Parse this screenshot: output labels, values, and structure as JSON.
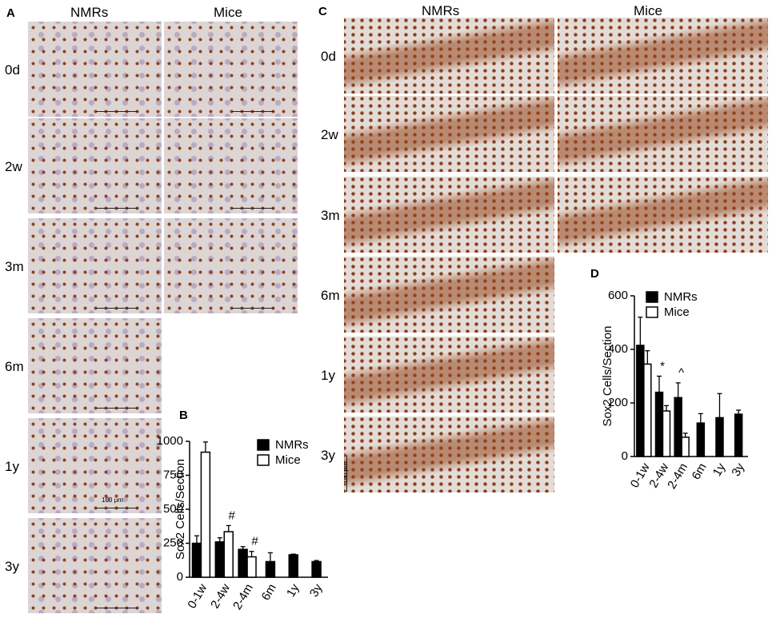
{
  "panels": {
    "A": {
      "label": "A",
      "columns": [
        "NMRs",
        "Mice"
      ],
      "rows": [
        "0d",
        "2w",
        "3m",
        "6m",
        "1y",
        "3y"
      ],
      "scale_label": "100 μm"
    },
    "C": {
      "label": "C",
      "columns": [
        "NMRs",
        "Mice"
      ],
      "rows": [
        "0d",
        "2w",
        "3m",
        "6m",
        "1y",
        "3y"
      ],
      "scale_label": "100 μm"
    }
  },
  "chart_data": [
    {
      "type": "bar",
      "panel_label": "B",
      "ylabel": "Sox2 Cells/Section",
      "categories": [
        "0-1w",
        "2-4w",
        "2-4m",
        "6m",
        "1y",
        "3y"
      ],
      "series": [
        {
          "name": "NMRs",
          "color": "#000000",
          "values": [
            250,
            260,
            205,
            115,
            165,
            115
          ],
          "errors": [
            55,
            30,
            20,
            65,
            5,
            8
          ],
          "markers": [
            null,
            null,
            null,
            null,
            null,
            null
          ]
        },
        {
          "name": "Mice",
          "color": "#ffffff",
          "values": [
            920,
            335,
            150,
            null,
            null,
            null
          ],
          "errors": [
            75,
            45,
            40,
            null,
            null,
            null
          ],
          "markers": [
            null,
            "#",
            "#",
            null,
            null,
            null
          ]
        }
      ],
      "ylim": [
        0,
        1000
      ],
      "yticks": [
        0,
        250,
        500,
        750,
        1000
      ]
    },
    {
      "type": "bar",
      "panel_label": "D",
      "ylabel": "Sox2 Cells/Section",
      "categories": [
        "0-1w",
        "2-4w",
        "2-4m",
        "6m",
        "1y",
        "3y"
      ],
      "series": [
        {
          "name": "NMRs",
          "color": "#000000",
          "values": [
            415,
            240,
            220,
            125,
            145,
            158
          ],
          "errors": [
            105,
            60,
            55,
            35,
            90,
            15
          ],
          "markers": [
            null,
            "*",
            "^",
            null,
            null,
            null
          ]
        },
        {
          "name": "Mice",
          "color": "#ffffff",
          "values": [
            345,
            170,
            72,
            null,
            null,
            null
          ],
          "errors": [
            50,
            20,
            15,
            null,
            null,
            null
          ],
          "markers": [
            null,
            null,
            null,
            null,
            null,
            null
          ]
        }
      ],
      "ylim": [
        0,
        600
      ],
      "yticks": [
        0,
        200,
        400,
        600
      ]
    }
  ]
}
